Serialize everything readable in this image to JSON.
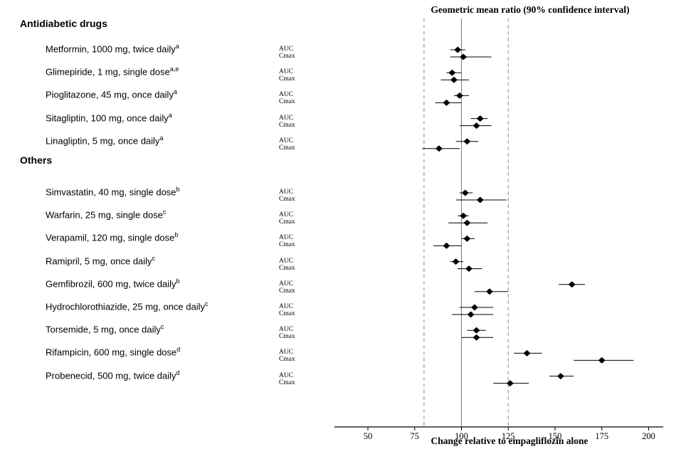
{
  "chart_data": {
    "type": "forest",
    "title": "Geometric mean ratio (90% confidence interval)",
    "xlabel": "Change relative to empagliflozin alone",
    "x_ticks": [
      50,
      75,
      100,
      125,
      150,
      175,
      200
    ],
    "xlim": [
      32,
      207
    ],
    "reference_line": 100,
    "equivalence_bounds": [
      80,
      125
    ],
    "metrics": [
      "AUC",
      "Cmax"
    ],
    "legend_position": "none",
    "grid": false,
    "groups": [
      {
        "label": "Antidiabetic drugs",
        "drugs": [
          {
            "name": "Metformin, 1000 mg, twice daily",
            "sup": "a",
            "AUC": {
              "gmr": 98,
              "lo": 94,
              "hi": 102
            },
            "Cmax": {
              "gmr": 101,
              "lo": 94,
              "hi": 116
            }
          },
          {
            "name": "Glimepiride, 1 mg, single dose",
            "sup": "a,e",
            "AUC": {
              "gmr": 95,
              "lo": 92,
              "hi": 100
            },
            "Cmax": {
              "gmr": 96,
              "lo": 89,
              "hi": 104
            }
          },
          {
            "name": "Pioglitazone, 45 mg, once daily",
            "sup": "a",
            "AUC": {
              "gmr": 99,
              "lo": 96,
              "hi": 104
            },
            "Cmax": {
              "gmr": 92,
              "lo": 86,
              "hi": 100
            }
          },
          {
            "name": "Sitagliptin, 100 mg, once daily",
            "sup": "a",
            "AUC": {
              "gmr": 110,
              "lo": 105,
              "hi": 114
            },
            "Cmax": {
              "gmr": 108,
              "lo": 99,
              "hi": 116
            }
          },
          {
            "name": "Linagliptin, 5 mg, once daily",
            "sup": "a",
            "AUC": {
              "gmr": 103,
              "lo": 97,
              "hi": 109
            },
            "Cmax": {
              "gmr": 88,
              "lo": 79,
              "hi": 99
            }
          }
        ]
      },
      {
        "label": "Others",
        "drugs": [
          {
            "name": "Simvastatin, 40 mg, single dose",
            "sup": "b",
            "AUC": {
              "gmr": 102,
              "lo": 99,
              "hi": 106
            },
            "Cmax": {
              "gmr": 110,
              "lo": 97,
              "hi": 124
            }
          },
          {
            "name": "Warfarin, 25 mg, single dose",
            "sup": "c",
            "AUC": {
              "gmr": 101,
              "lo": 98,
              "hi": 104
            },
            "Cmax": {
              "gmr": 103,
              "lo": 93,
              "hi": 114
            }
          },
          {
            "name": "Verapamil, 120 mg, single dose",
            "sup": "b",
            "AUC": {
              "gmr": 103,
              "lo": 100,
              "hi": 107
            },
            "Cmax": {
              "gmr": 92,
              "lo": 85,
              "hi": 100
            }
          },
          {
            "name": "Ramipril, 5 mg, once daily",
            "sup": "c",
            "AUC": {
              "gmr": 97,
              "lo": 94,
              "hi": 101
            },
            "Cmax": {
              "gmr": 104,
              "lo": 98,
              "hi": 111
            }
          },
          {
            "name": "Gemfibrozil, 600 mg, twice daily",
            "sup": "b",
            "AUC": {
              "gmr": 159,
              "lo": 152,
              "hi": 166
            },
            "Cmax": {
              "gmr": 115,
              "lo": 107,
              "hi": 125
            }
          },
          {
            "name": "Hydrochlorothiazide, 25 mg, once daily",
            "sup": "c",
            "AUC": {
              "gmr": 107,
              "lo": 99,
              "hi": 117
            },
            "Cmax": {
              "gmr": 105,
              "lo": 95,
              "hi": 117
            }
          },
          {
            "name": "Torsemide, 5 mg, once daily",
            "sup": "c",
            "AUC": {
              "gmr": 108,
              "lo": 103,
              "hi": 113
            },
            "Cmax": {
              "gmr": 108,
              "lo": 100,
              "hi": 117
            }
          },
          {
            "name": "Rifampicin, 600 mg, single dose",
            "sup": "d",
            "AUC": {
              "gmr": 135,
              "lo": 128,
              "hi": 143
            },
            "Cmax": {
              "gmr": 175,
              "lo": 160,
              "hi": 192
            }
          },
          {
            "name": "Probenecid, 500 mg, twice daily",
            "sup": "d",
            "AUC": {
              "gmr": 153,
              "lo": 147,
              "hi": 160
            },
            "Cmax": {
              "gmr": 126,
              "lo": 117,
              "hi": 136
            }
          }
        ]
      }
    ]
  }
}
